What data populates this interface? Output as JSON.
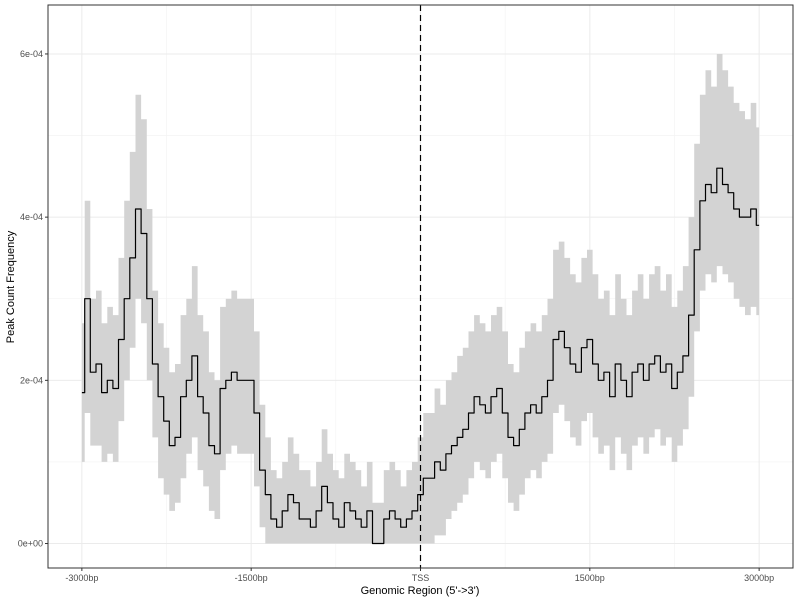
{
  "chart_data": {
    "type": "line",
    "xlabel": "Genomic Region (5'->3')",
    "ylabel": "Peak Count Frequency",
    "x_range": [
      -3000,
      3000
    ],
    "xlim": [
      -3300,
      3300
    ],
    "ylim": [
      -3e-05,
      0.00066
    ],
    "x_ticks": [
      {
        "value": -3000,
        "label": "-3000bp"
      },
      {
        "value": -1500,
        "label": "-1500bp"
      },
      {
        "value": 0,
        "label": "TSS"
      },
      {
        "value": 1500,
        "label": "1500bp"
      },
      {
        "value": 3000,
        "label": "3000bp"
      }
    ],
    "y_ticks": [
      {
        "value": 0,
        "label": "0e+00"
      },
      {
        "value": 0.0002,
        "label": "2e-04"
      },
      {
        "value": 0.0004,
        "label": "4e-04"
      },
      {
        "value": 0.0006,
        "label": "6e-04"
      }
    ],
    "reference_line": {
      "x": 0,
      "style": "dashed"
    },
    "grid": true,
    "series": [
      {
        "color": "#000000",
        "ci_color": "#d3d3d3",
        "x": [
          -3000,
          -2950,
          -2900,
          -2850,
          -2800,
          -2750,
          -2700,
          -2650,
          -2600,
          -2550,
          -2500,
          -2450,
          -2400,
          -2350,
          -2300,
          -2250,
          -2200,
          -2150,
          -2100,
          -2050,
          -2000,
          -1950,
          -1900,
          -1850,
          -1800,
          -1750,
          -1700,
          -1650,
          -1600,
          -1550,
          -1500,
          -1450,
          -1400,
          -1350,
          -1300,
          -1250,
          -1200,
          -1150,
          -1100,
          -1050,
          -1000,
          -950,
          -900,
          -850,
          -800,
          -750,
          -700,
          -650,
          -600,
          -550,
          -500,
          -450,
          -400,
          -350,
          -300,
          -250,
          -200,
          -150,
          -100,
          -50,
          0,
          50,
          100,
          150,
          200,
          250,
          300,
          350,
          400,
          450,
          500,
          550,
          600,
          650,
          700,
          750,
          800,
          850,
          900,
          950,
          1000,
          1050,
          1100,
          1150,
          1200,
          1250,
          1300,
          1350,
          1400,
          1450,
          1500,
          1550,
          1600,
          1650,
          1700,
          1750,
          1800,
          1850,
          1900,
          1950,
          2000,
          2050,
          2100,
          2150,
          2200,
          2250,
          2300,
          2350,
          2400,
          2450,
          2500,
          2550,
          2600,
          2650,
          2700,
          2750,
          2800,
          2850,
          2900,
          2950,
          3000
        ],
        "y": [
          0.000185,
          0.0003,
          0.00021,
          0.00022,
          0.000185,
          0.0002,
          0.00019,
          0.00025,
          0.0003,
          0.00035,
          0.00041,
          0.00038,
          0.0003,
          0.00022,
          0.00018,
          0.00015,
          0.00012,
          0.00013,
          0.00018,
          0.0002,
          0.00023,
          0.00018,
          0.00016,
          0.00012,
          0.00011,
          0.00019,
          0.0002,
          0.00021,
          0.0002,
          0.0002,
          0.0002,
          0.00016,
          9e-05,
          6e-05,
          3e-05,
          2e-05,
          4e-05,
          6e-05,
          5e-05,
          3e-05,
          3e-05,
          2e-05,
          4e-05,
          7e-05,
          5e-05,
          3e-05,
          2e-05,
          5e-05,
          4e-05,
          3e-05,
          2e-05,
          4e-05,
          0.0,
          0.0,
          3e-05,
          4e-05,
          3e-05,
          2e-05,
          3e-05,
          4e-05,
          6e-05,
          8e-05,
          8e-05,
          0.0001,
          9e-05,
          0.00011,
          0.00012,
          0.00013,
          0.00014,
          0.00016,
          0.00018,
          0.00017,
          0.00016,
          0.00018,
          0.00019,
          0.00016,
          0.00013,
          0.00012,
          0.00014,
          0.00016,
          0.00017,
          0.00016,
          0.00018,
          0.0002,
          0.00025,
          0.00026,
          0.00024,
          0.00022,
          0.00021,
          0.00024,
          0.00025,
          0.00022,
          0.0002,
          0.00021,
          0.00018,
          0.00022,
          0.0002,
          0.00018,
          0.00021,
          0.00022,
          0.0002,
          0.00022,
          0.00023,
          0.00021,
          0.00022,
          0.00019,
          0.00021,
          0.00023,
          0.00028,
          0.00036,
          0.00042,
          0.00044,
          0.00043,
          0.00046,
          0.00044,
          0.00043,
          0.00041,
          0.0004,
          0.0004,
          0.00041,
          0.00039
        ],
        "lower": [
          0.0001,
          0.00016,
          0.00012,
          0.00012,
          0.0001,
          0.00011,
          0.0001,
          0.00015,
          0.0002,
          0.00024,
          0.0003,
          0.00027,
          0.0002,
          0.00013,
          8e-05,
          6e-05,
          4e-05,
          5e-05,
          8e-05,
          0.00011,
          0.00013,
          9e-05,
          7e-05,
          4e-05,
          3e-05,
          9e-05,
          0.00011,
          0.00012,
          0.00011,
          0.00011,
          0.00011,
          7e-05,
          2e-05,
          0.0,
          0.0,
          0.0,
          0.0,
          0.0,
          0.0,
          0.0,
          0.0,
          0.0,
          0.0,
          0.0,
          0.0,
          0.0,
          0.0,
          0.0,
          0.0,
          0.0,
          0.0,
          0.0,
          0.0,
          0.0,
          0.0,
          0.0,
          0.0,
          0.0,
          0.0,
          0.0,
          0.0,
          0.0,
          0.0,
          1e-05,
          1e-05,
          3e-05,
          4e-05,
          5e-05,
          6e-05,
          8e-05,
          0.0001,
          9e-05,
          8e-05,
          0.0001,
          0.00011,
          8e-05,
          5e-05,
          4e-05,
          6e-05,
          8e-05,
          9e-05,
          8e-05,
          0.0001,
          0.00011,
          0.00016,
          0.00017,
          0.00015,
          0.00013,
          0.00012,
          0.00015,
          0.00016,
          0.00013,
          0.00011,
          0.00012,
          9e-05,
          0.00013,
          0.00011,
          9e-05,
          0.00012,
          0.00013,
          0.00011,
          0.00013,
          0.00014,
          0.00012,
          0.00013,
          0.0001,
          0.00012,
          0.00014,
          0.00018,
          0.00026,
          0.00031,
          0.00033,
          0.00032,
          0.00034,
          0.00033,
          0.00032,
          0.0003,
          0.00029,
          0.00028,
          0.00029,
          0.00028
        ],
        "upper": [
          0.00027,
          0.00042,
          0.0003,
          0.00031,
          0.00027,
          0.00029,
          0.00028,
          0.00035,
          0.00042,
          0.00048,
          0.00055,
          0.00052,
          0.00041,
          0.00031,
          0.00027,
          0.00024,
          0.00021,
          0.00022,
          0.00028,
          0.0003,
          0.00034,
          0.00028,
          0.00026,
          0.00021,
          0.0002,
          0.00029,
          0.0003,
          0.00031,
          0.0003,
          0.0003,
          0.0003,
          0.00026,
          0.00017,
          0.00013,
          9e-05,
          8e-05,
          0.0001,
          0.00013,
          0.00011,
          9e-05,
          9e-05,
          7e-05,
          0.0001,
          0.00014,
          0.00011,
          9e-05,
          8e-05,
          0.00011,
          0.0001,
          9e-05,
          7e-05,
          0.0001,
          5e-05,
          5e-05,
          9e-05,
          0.0001,
          9e-05,
          7e-05,
          9e-05,
          0.0001,
          0.00013,
          0.00016,
          0.00016,
          0.00019,
          0.00017,
          0.0002,
          0.00021,
          0.00023,
          0.00024,
          0.00026,
          0.00028,
          0.00027,
          0.00026,
          0.00028,
          0.00029,
          0.00026,
          0.00022,
          0.00021,
          0.00024,
          0.00026,
          0.00027,
          0.00026,
          0.00028,
          0.0003,
          0.00036,
          0.00037,
          0.00035,
          0.00033,
          0.00032,
          0.00035,
          0.00036,
          0.00033,
          0.0003,
          0.00031,
          0.00028,
          0.00033,
          0.0003,
          0.00028,
          0.00031,
          0.00033,
          0.0003,
          0.00033,
          0.00034,
          0.00031,
          0.00033,
          0.00029,
          0.00031,
          0.00034,
          0.0004,
          0.00049,
          0.00055,
          0.00058,
          0.00056,
          0.0006,
          0.00058,
          0.00056,
          0.00054,
          0.00053,
          0.00052,
          0.00054,
          0.00051
        ]
      }
    ]
  }
}
